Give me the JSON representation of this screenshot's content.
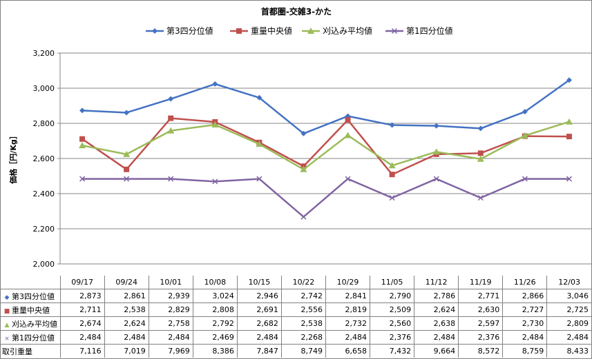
{
  "chart_data": {
    "type": "line",
    "title": "首都圏-交雑3-かた",
    "ylabel": "価格［円/Kg］",
    "xlabel": "",
    "ylim": [
      2000,
      3200
    ],
    "yticks": [
      "2,000",
      "2,200",
      "2,400",
      "2,600",
      "2,800",
      "3,000",
      "3,200"
    ],
    "yticks_values": [
      2000,
      2200,
      2400,
      2600,
      2800,
      3000,
      3200
    ],
    "grid": true,
    "legend_position": "top",
    "categories": [
      "09/17",
      "09/24",
      "10/01",
      "10/08",
      "10/15",
      "10/22",
      "10/29",
      "11/05",
      "11/12",
      "11/19",
      "11/26",
      "12/03"
    ],
    "series": [
      {
        "name": "第3四分位値",
        "color": "#4472C4",
        "marker": "diamond",
        "values": [
          2873,
          2861,
          2939,
          3024,
          2946,
          2742,
          2841,
          2790,
          2786,
          2771,
          2866,
          3046
        ],
        "labels": [
          "2,873",
          "2,861",
          "2,939",
          "3,024",
          "2,946",
          "2,742",
          "2,841",
          "2,790",
          "2,786",
          "2,771",
          "2,866",
          "3,046"
        ]
      },
      {
        "name": "重量中央値",
        "color": "#C0504D",
        "marker": "square",
        "values": [
          2711,
          2538,
          2829,
          2808,
          2691,
          2556,
          2819,
          2509,
          2624,
          2630,
          2727,
          2725
        ],
        "labels": [
          "2,711",
          "2,538",
          "2,829",
          "2,808",
          "2,691",
          "2,556",
          "2,819",
          "2,509",
          "2,624",
          "2,630",
          "2,727",
          "2,725"
        ]
      },
      {
        "name": "刈込み平均値",
        "color": "#9BBB59",
        "marker": "triangle",
        "values": [
          2674,
          2624,
          2758,
          2792,
          2682,
          2538,
          2732,
          2560,
          2638,
          2597,
          2730,
          2809
        ],
        "labels": [
          "2,674",
          "2,624",
          "2,758",
          "2,792",
          "2,682",
          "2,538",
          "2,732",
          "2,560",
          "2,638",
          "2,597",
          "2,730",
          "2,809"
        ]
      },
      {
        "name": "第1四分位値",
        "color": "#8064A2",
        "marker": "x",
        "values": [
          2484,
          2484,
          2484,
          2469,
          2484,
          2268,
          2484,
          2376,
          2484,
          2376,
          2484,
          2484
        ],
        "labels": [
          "2,484",
          "2,484",
          "2,484",
          "2,469",
          "2,484",
          "2,268",
          "2,484",
          "2,376",
          "2,484",
          "2,376",
          "2,484",
          "2,484"
        ]
      }
    ],
    "extra_rows": [
      {
        "name": "取引重量",
        "values": [
          7116,
          7019,
          7969,
          8386,
          7847,
          8749,
          6658,
          7432,
          9664,
          8572,
          8759,
          8433
        ],
        "labels": [
          "7,116",
          "7,019",
          "7,969",
          "8,386",
          "7,847",
          "8,749",
          "6,658",
          "7,432",
          "9,664",
          "8,572",
          "8,759",
          "8,433"
        ]
      }
    ]
  }
}
